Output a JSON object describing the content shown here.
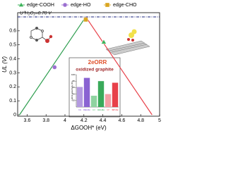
{
  "chart_data": [
    {
      "type": "line",
      "xlabel": "ΔGOOH* (eV)",
      "ylabel": "UL (V)",
      "xlim": [
        3.5,
        5.0
      ],
      "ylim": [
        -0.01,
        0.73
      ],
      "xticks": [
        3.6,
        3.8,
        4.0,
        4.2,
        4.4,
        4.6,
        4.8,
        5.0
      ],
      "yticks": [
        0.0,
        0.1,
        0.2,
        0.3,
        0.4,
        0.5,
        0.6
      ],
      "reference": {
        "value": 0.7,
        "label": "U⁰H₂O₂=0.70 V",
        "color": "#1a237e"
      },
      "volcano": {
        "x": [
          3.52,
          4.22,
          4.92
        ],
        "values": [
          0,
          0.7,
          0
        ],
        "colors": [
          "#2e9e4f",
          "#e8414a"
        ]
      },
      "series": [
        {
          "name": "edge-COOH",
          "color": "#3cb35a",
          "marker": "triangle",
          "x": [
            4.41
          ],
          "values": [
            0.52
          ]
        },
        {
          "name": "edge-HO",
          "color": "#9b6fd0",
          "marker": "circle",
          "x": [
            3.89
          ],
          "values": [
            0.34
          ]
        },
        {
          "name": "edge-CHO",
          "color": "#d9a520",
          "marker": "square",
          "x": [
            4.22
          ],
          "values": [
            0.68
          ]
        }
      ],
      "annotations": [
        "2eORR",
        "oxidized graphite"
      ]
    },
    {
      "type": "bar",
      "ylabel": "H2O2 selectivity (%)",
      "categories": [
        "KB",
        "KB-Ox",
        "GC",
        "GC-Ox",
        "SP",
        "SP-Ox"
      ],
      "values": [
        62,
        90,
        35,
        80,
        40,
        75
      ],
      "colors": [
        "#b49be0",
        "#8a63d2",
        "#8fd3a0",
        "#3aaa5a",
        "#f3a0a5",
        "#e8414a"
      ],
      "ylim": [
        0,
        100
      ],
      "yticks": [
        20,
        40,
        60,
        80,
        100
      ]
    }
  ]
}
